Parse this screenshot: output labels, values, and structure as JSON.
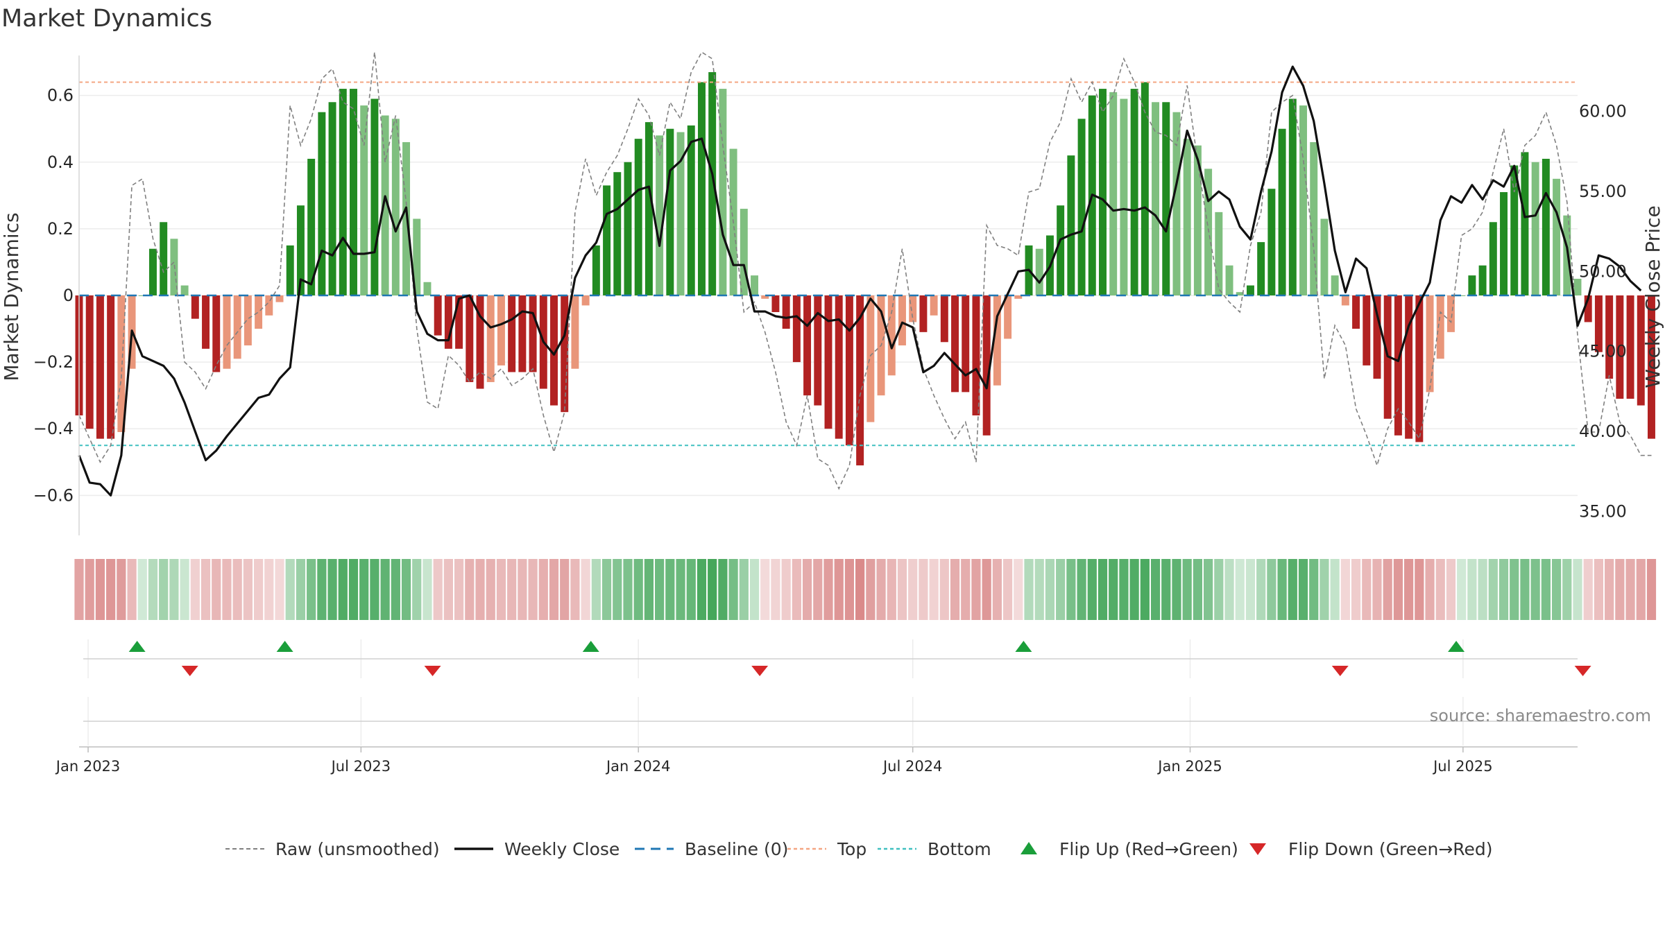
{
  "chart_data": {
    "type": "bar+line",
    "title": "Market Dynamics",
    "ylabel_left": "Market Dynamics",
    "ylabel_right": "Weekly Close Price",
    "source": "source: sharemaestro.com",
    "ylim_left": [
      -0.72,
      0.72
    ],
    "ylim_right": [
      33.5,
      63.5
    ],
    "xlim": [
      "2022-12-26",
      "2025-09-15"
    ],
    "yticks_left": [
      0.6,
      0.4,
      0.2,
      0,
      -0.2,
      -0.4,
      -0.6
    ],
    "yticks_left_labels": [
      "0.6",
      "0.4",
      "0.2",
      "0",
      "−0.2",
      "−0.4",
      "−0.6"
    ],
    "yticks_right": [
      60,
      55,
      50,
      45,
      40,
      35
    ],
    "yticks_right_labels": [
      "60.00",
      "55.00",
      "50.00",
      "45.00",
      "40.00",
      "35.00"
    ],
    "xticks": [
      {
        "date": "2023-01-01",
        "label": "Jan 2023"
      },
      {
        "date": "2023-07-01",
        "label": "Jul 2023"
      },
      {
        "date": "2024-01-01",
        "label": "Jan 2024"
      },
      {
        "date": "2024-07-01",
        "label": "Jul 2024"
      },
      {
        "date": "2025-01-01",
        "label": "Jan 2025"
      },
      {
        "date": "2025-07-01",
        "label": "Jul 2025"
      }
    ],
    "top_threshold": 0.64,
    "bottom_threshold": -0.45,
    "grid": true,
    "legend_position": "bottom-center",
    "colors": {
      "strong_green": "#228b22",
      "light_green": "#7fbf7f",
      "strong_red": "#b22222",
      "light_red": "#e9967a",
      "close_line": "#111111",
      "raw_line": "#808080",
      "baseline": "#1f77b4",
      "top": "#f4a582",
      "bottom": "#40c0c0",
      "flip_up": "#1a9e3a",
      "flip_down": "#d62728"
    },
    "legend": [
      {
        "key": "raw",
        "label": "Raw (unsmoothed)"
      },
      {
        "key": "close",
        "label": "Weekly Close"
      },
      {
        "key": "baseline",
        "label": "Baseline (0)"
      },
      {
        "key": "top",
        "label": "Top"
      },
      {
        "key": "bottom",
        "label": "Bottom"
      },
      {
        "key": "flip_up",
        "label": "Flip Up (Red→Green)"
      },
      {
        "key": "flip_down",
        "label": "Flip Down (Green→Red)"
      }
    ],
    "start_date": "2022-12-26",
    "dynamics": [
      -0.36,
      -0.4,
      -0.43,
      -0.43,
      -0.41,
      -0.22,
      0.0,
      0.14,
      0.22,
      0.17,
      0.03,
      -0.07,
      -0.16,
      -0.23,
      -0.22,
      -0.19,
      -0.15,
      -0.1,
      -0.06,
      -0.02,
      0.15,
      0.27,
      0.41,
      0.55,
      0.58,
      0.62,
      0.62,
      0.57,
      0.59,
      0.54,
      0.53,
      0.46,
      0.23,
      0.04,
      -0.12,
      -0.16,
      -0.16,
      -0.26,
      -0.28,
      -0.26,
      -0.21,
      -0.23,
      -0.23,
      -0.23,
      -0.28,
      -0.33,
      -0.35,
      -0.22,
      -0.03,
      0.15,
      0.33,
      0.37,
      0.4,
      0.47,
      0.52,
      0.48,
      0.5,
      0.49,
      0.51,
      0.64,
      0.67,
      0.62,
      0.44,
      0.26,
      0.06,
      -0.01,
      -0.05,
      -0.1,
      -0.2,
      -0.3,
      -0.33,
      -0.4,
      -0.43,
      -0.45,
      -0.51,
      -0.38,
      -0.3,
      -0.24,
      -0.15,
      -0.08,
      -0.11,
      -0.06,
      -0.14,
      -0.29,
      -0.29,
      -0.36,
      -0.42,
      -0.27,
      -0.13,
      -0.01,
      0.15,
      0.14,
      0.18,
      0.27,
      0.42,
      0.53,
      0.6,
      0.62,
      0.61,
      0.59,
      0.62,
      0.64,
      0.58,
      0.58,
      0.55,
      0.47,
      0.45,
      0.38,
      0.25,
      0.09,
      0.01,
      0.03,
      0.16,
      0.32,
      0.5,
      0.59,
      0.57,
      0.46,
      0.23,
      0.06,
      -0.03,
      -0.1,
      -0.21,
      -0.25,
      -0.37,
      -0.42,
      -0.43,
      -0.44,
      -0.29,
      -0.19,
      -0.11,
      0.0,
      0.06,
      0.09,
      0.22,
      0.31,
      0.39,
      0.43,
      0.4,
      0.41,
      0.35,
      0.24,
      0.05,
      -0.08,
      -0.17,
      -0.25,
      -0.31,
      -0.31,
      -0.33,
      -0.43
    ],
    "raw": [
      -0.36,
      -0.43,
      -0.5,
      -0.45,
      -0.25,
      0.33,
      0.35,
      0.17,
      0.07,
      0.1,
      -0.2,
      -0.23,
      -0.28,
      -0.21,
      -0.15,
      -0.11,
      -0.07,
      -0.05,
      -0.02,
      0.03,
      0.57,
      0.45,
      0.53,
      0.65,
      0.68,
      0.58,
      0.56,
      0.45,
      0.73,
      0.4,
      0.54,
      0.28,
      -0.1,
      -0.32,
      -0.34,
      -0.18,
      -0.21,
      -0.26,
      -0.23,
      -0.25,
      -0.22,
      -0.27,
      -0.25,
      -0.22,
      -0.36,
      -0.47,
      -0.35,
      0.25,
      0.41,
      0.3,
      0.37,
      0.42,
      0.5,
      0.59,
      0.54,
      0.42,
      0.58,
      0.53,
      0.67,
      0.73,
      0.71,
      0.45,
      0.22,
      -0.05,
      -0.02,
      -0.11,
      -0.23,
      -0.38,
      -0.45,
      -0.3,
      -0.49,
      -0.51,
      -0.58,
      -0.51,
      -0.3,
      -0.18,
      -0.15,
      -0.05,
      0.14,
      -0.07,
      -0.22,
      -0.3,
      -0.37,
      -0.43,
      -0.38,
      -0.5,
      0.21,
      0.15,
      0.14,
      0.12,
      0.31,
      0.32,
      0.46,
      0.52,
      0.65,
      0.58,
      0.64,
      0.55,
      0.6,
      0.71,
      0.64,
      0.55,
      0.49,
      0.48,
      0.45,
      0.63,
      0.4,
      0.2,
      0.02,
      -0.02,
      -0.05,
      0.15,
      0.25,
      0.55,
      0.58,
      0.6,
      0.41,
      0.14,
      -0.25,
      -0.09,
      -0.15,
      -0.34,
      -0.42,
      -0.51,
      -0.4,
      -0.34,
      -0.38,
      -0.43,
      -0.28,
      -0.05,
      -0.08,
      0.18,
      0.2,
      0.25,
      0.37,
      0.5,
      0.31,
      0.45,
      0.48,
      0.55,
      0.45,
      0.28,
      -0.12,
      -0.41,
      -0.41,
      -0.24,
      -0.38,
      -0.42,
      -0.48,
      -0.48
    ],
    "close": [
      38.5,
      36.8,
      36.7,
      36.0,
      38.5,
      46.3,
      44.7,
      44.4,
      44.1,
      43.3,
      41.8,
      40.0,
      38.2,
      38.8,
      39.7,
      40.5,
      41.3,
      42.1,
      42.3,
      43.3,
      44.0,
      49.5,
      49.2,
      51.3,
      51.0,
      52.1,
      51.1,
      51.1,
      51.2,
      54.7,
      52.5,
      54.0,
      47.5,
      46.1,
      45.7,
      45.7,
      48.3,
      48.5,
      47.2,
      46.5,
      46.7,
      47.0,
      47.5,
      47.4,
      45.6,
      44.8,
      46.0,
      49.6,
      51.0,
      51.8,
      53.6,
      53.9,
      54.5,
      55.1,
      55.3,
      51.6,
      56.3,
      56.9,
      58.1,
      58.3,
      56.1,
      52.3,
      50.4,
      50.4,
      47.5,
      47.5,
      47.2,
      47.1,
      47.2,
      46.6,
      47.4,
      46.9,
      47.0,
      46.3,
      47.1,
      48.3,
      47.5,
      45.2,
      46.8,
      46.5,
      43.7,
      44.1,
      44.9,
      44.2,
      43.5,
      43.9,
      42.7,
      47.2,
      48.6,
      50.0,
      50.1,
      49.3,
      50.3,
      52.0,
      52.3,
      52.5,
      54.8,
      54.5,
      53.8,
      53.9,
      53.8,
      54.0,
      53.5,
      52.5,
      55.5,
      58.8,
      57.0,
      54.4,
      55.0,
      54.5,
      52.8,
      52.0,
      55.0,
      57.5,
      61.2,
      62.8,
      61.6,
      59.4,
      55.5,
      51.3,
      48.7,
      50.8,
      50.2,
      47.3,
      44.7,
      44.4,
      46.6,
      48.0,
      49.3,
      53.2,
      54.7,
      54.3,
      55.4,
      54.5,
      55.7,
      55.3,
      56.6,
      53.4,
      53.5,
      54.9,
      53.7,
      51.5,
      46.6,
      48.3,
      51.0,
      50.8,
      50.3,
      49.4,
      48.8
    ]
  }
}
